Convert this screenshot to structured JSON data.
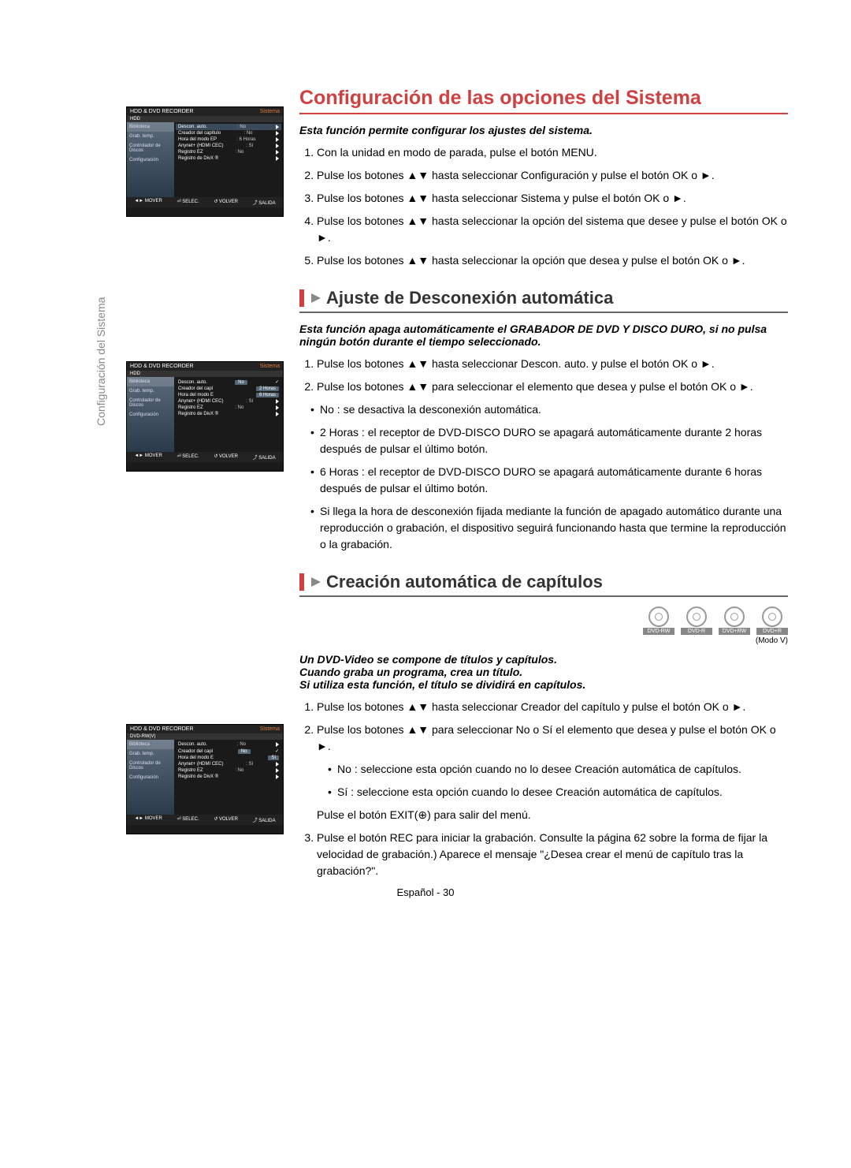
{
  "side_label": "Configuración del Sistema",
  "section_main_title": "Configuración de las opciones del Sistema",
  "section_main_intro": "Esta función permite configurar los ajustes del sistema.",
  "main_steps": [
    "Con la unidad en modo de parada, pulse el botón MENU.",
    "Pulse los botones ▲▼ hasta seleccionar Configuración y pulse el botón OK o ►.",
    "Pulse los botones ▲▼ hasta seleccionar Sistema y pulse el botón OK o ►.",
    "Pulse los botones ▲▼ hasta seleccionar la opción del sistema que desee y pulse el botón OK o ►.",
    "Pulse los botones ▲▼ hasta seleccionar la opción que desea y pulse el botón OK o ►."
  ],
  "section_auto_title": "Ajuste de Desconexión automática",
  "section_auto_intro": "Esta función apaga automáticamente el GRABADOR DE DVD Y DISCO DURO, si no pulsa ningún botón durante el tiempo seleccionado.",
  "auto_steps": [
    "Pulse los botones ▲▼ hasta seleccionar Descon. auto. y pulse el botón OK o ►.",
    "Pulse los botones ▲▼ para seleccionar el elemento que desea y pulse el botón OK o ►."
  ],
  "auto_bullets": [
    "No : se desactiva la desconexión automática.",
    "2 Horas : el receptor de DVD-DISCO DURO se apagará automáticamente durante 2 horas después de pulsar el último botón.",
    "6 Horas : el receptor de DVD-DISCO DURO se apagará automáticamente durante 6 horas después de pulsar el último botón.",
    "Si llega la hora de desconexión fijada mediante la función de apagado automático durante una reproducción o grabación, el dispositivo seguirá funcionando hasta que termine la reproducción o la grabación."
  ],
  "section_chap_title": "Creación automática de capítulos",
  "disc_labels": [
    "DVD-RW",
    "DVD-R",
    "DVD+RW",
    "DVD+R"
  ],
  "modov": "(Modo V)",
  "chap_intro": "Un DVD-Video se compone de títulos y capítulos.\nCuando graba un programa, crea un título.\nSi utiliza esta función, el título se dividirá en capítulos.",
  "chap_steps": [
    "Pulse los botones ▲▼ hasta seleccionar Creador del capítulo y pulse el botón OK o ►.",
    "Pulse los botones ▲▼ para seleccionar No o Sí el elemento que desea y pulse el botón OK o ►."
  ],
  "chap_bullets": [
    "No : seleccione esta opción cuando no lo desee Creación automática de capítulos.",
    "Sí : seleccione esta opción cuando lo desee Creación automática de capítulos."
  ],
  "chap_after": "Pulse el botón EXIT(⊕) para salir del menú.",
  "chap_step3": "Pulse el botón REC para iniciar la grabación. Consulte la página 62 sobre la forma de fijar la velocidad de grabación.) Aparece el mensaje \"¿Desea crear el menú de capítulo tras la grabación?\".",
  "footer": "Español - 30",
  "mini": {
    "header_left": "HDD & DVD RECORDER",
    "header_right": "Sistema",
    "sub1": "HDD",
    "sub3": "DVD-RW(V)",
    "nav": [
      "Biblioteca",
      "Grab. temp.",
      "Controlador de Discos",
      "Configuración"
    ],
    "rows1": [
      {
        "l": "Descon. auto.",
        "v": ": No",
        "hl": true,
        "tri": true
      },
      {
        "l": "Creador del capítulo",
        "v": ": No",
        "tri": true
      },
      {
        "l": "Hora del modo EP",
        "v": ": 6 Horas",
        "tri": true
      },
      {
        "l": "Anynet+ (HDMI CEC)",
        "v": ": Sí",
        "tri": true
      },
      {
        "l": "Registro EZ",
        "v": ": No",
        "tri": true
      },
      {
        "l": "Registro de DivX ®",
        "v": "",
        "tri": true
      }
    ],
    "rows2": [
      {
        "l": "Descon. auto.",
        "dd": "No",
        "chk": true
      },
      {
        "l": "Creador del capí",
        "dd": "2 Horas"
      },
      {
        "l": "Hora del modo E",
        "dd": "6 Horas"
      },
      {
        "l": "Anynet+ (HDMI CEC)",
        "v": ": Sí",
        "tri": true
      },
      {
        "l": "Registro EZ",
        "v": ": No",
        "tri": true
      },
      {
        "l": "Registro de DivX ®",
        "v": "",
        "tri": true
      }
    ],
    "rows3": [
      {
        "l": "Descon. auto.",
        "v": ": No",
        "tri": true
      },
      {
        "l": "Creador del capí",
        "dd": "No",
        "chk": true
      },
      {
        "l": "Hora del modo E",
        "dd": "Sí"
      },
      {
        "l": "Anynet+ (HDMI CEC)",
        "v": ": Sí",
        "tri": true
      },
      {
        "l": "Registro EZ",
        "v": ": No",
        "tri": true
      },
      {
        "l": "Registro de DivX ®",
        "v": "",
        "tri": true
      }
    ],
    "footer_items": [
      "◄► MOVER",
      "⏎ SELEC.",
      "↺ VOLVER",
      "⤴ SALIDA"
    ]
  }
}
